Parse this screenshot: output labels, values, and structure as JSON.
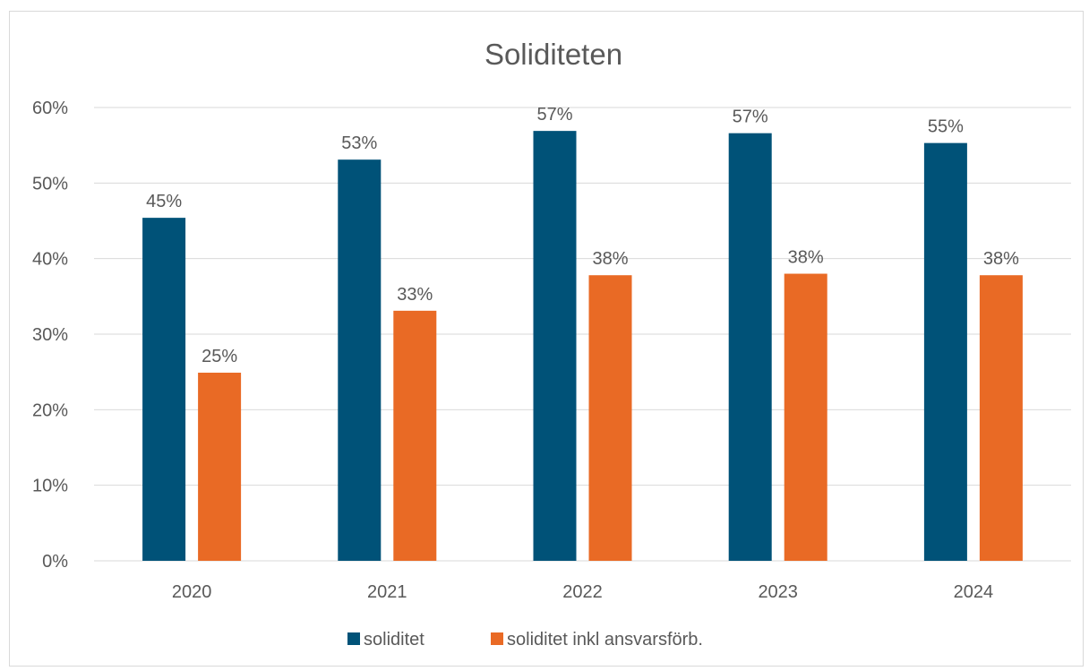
{
  "chart_data": {
    "type": "bar",
    "title": "Soliditeten",
    "categories": [
      "2020",
      "2021",
      "2022",
      "2023",
      "2024"
    ],
    "series": [
      {
        "name": "soliditet",
        "values": [
          0.454,
          0.531,
          0.569,
          0.566,
          0.553
        ],
        "labels": [
          "45%",
          "53%",
          "57%",
          "57%",
          "55%"
        ],
        "color": "#005278"
      },
      {
        "name": "soliditet inkl ansvarsförb.",
        "values": [
          0.249,
          0.331,
          0.378,
          0.38,
          0.378
        ],
        "labels": [
          "25%",
          "33%",
          "38%",
          "38%",
          "38%"
        ],
        "color": "#E96A25"
      }
    ],
    "ylim": [
      0,
      0.6
    ],
    "yticks": [
      0,
      0.1,
      0.2,
      0.3,
      0.4,
      0.5,
      0.6
    ],
    "ytick_labels": [
      "0%",
      "10%",
      "20%",
      "30%",
      "40%",
      "50%",
      "60%"
    ],
    "xlabel": "",
    "ylabel": "",
    "grid": true,
    "legend_position": "bottom",
    "data_labels": true
  }
}
